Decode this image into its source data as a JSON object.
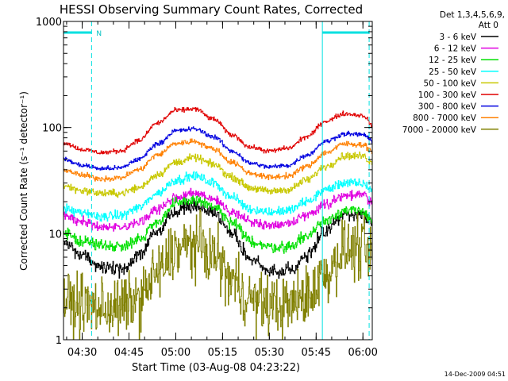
{
  "chart_data": {
    "type": "line",
    "title": "HESSI Observing Summary Count Rates, Corrected",
    "xlabel": "Start Time (03-Aug-08 04:23:22)",
    "ylabel": "Corrected Count Rate (s⁻¹ detector⁻¹)",
    "x_start": "04:23",
    "x_end": "06:02",
    "xlim": [
      24,
      123
    ],
    "x_ticks": [
      {
        "label": "04:30",
        "value": 30
      },
      {
        "label": "04:45",
        "value": 45
      },
      {
        "label": "05:00",
        "value": 60
      },
      {
        "label": "05:15",
        "value": 75
      },
      {
        "label": "05:30",
        "value": 90
      },
      {
        "label": "05:45",
        "value": 105
      },
      {
        "label": "06:00",
        "value": 120
      }
    ],
    "y_scale": "log",
    "ylim": [
      1,
      1000
    ],
    "y_ticks": [
      {
        "label": "1",
        "value": 1
      },
      {
        "label": "10",
        "value": 10
      },
      {
        "label": "100",
        "value": 100
      },
      {
        "label": "1000",
        "value": 1000
      }
    ],
    "legend": {
      "position": "right-outside",
      "header": [
        "Det 1,3,4,5,6,9,",
        "Att 0"
      ]
    },
    "annotations": [
      {
        "label": "N",
        "x": 33
      }
    ],
    "night_intervals": [
      {
        "start": 24,
        "end": 33
      },
      {
        "start": 107,
        "end": 122
      }
    ],
    "cyan_lines": {
      "solid": [
        24,
        107
      ],
      "dashed": [
        33,
        122
      ]
    },
    "x": [
      24,
      30,
      36,
      42,
      48,
      54,
      60,
      66,
      72,
      78,
      84,
      90,
      96,
      102,
      108,
      114,
      120,
      123
    ],
    "series": [
      {
        "name": "3 - 6 keV",
        "color": "#000000",
        "noise": 0.07,
        "values": [
          8.3,
          6.3,
          4.8,
          4.6,
          6.2,
          10.5,
          16.3,
          18.5,
          15.8,
          10.2,
          5.6,
          4.4,
          4.5,
          6.3,
          10.7,
          15.1,
          15.0,
          12.0
        ]
      },
      {
        "name": "6 - 12 keV",
        "color": "#e000e0",
        "noise": 0.05,
        "values": [
          15.0,
          13.0,
          11.5,
          11.2,
          12.5,
          17.0,
          22.0,
          24.0,
          21.0,
          16.0,
          13.0,
          12.0,
          12.5,
          15.0,
          19.0,
          23.0,
          23.0,
          20.0
        ]
      },
      {
        "name": "12 - 25 keV",
        "color": "#00e000",
        "noise": 0.06,
        "values": [
          10.0,
          8.5,
          7.8,
          7.6,
          8.8,
          13.0,
          19.0,
          21.0,
          18.0,
          12.5,
          8.5,
          7.5,
          7.5,
          9.5,
          13.5,
          16.5,
          16.0,
          13.5
        ]
      },
      {
        "name": "25 - 50 keV",
        "color": "#00ffff",
        "noise": 0.05,
        "values": [
          17.0,
          15.5,
          14.5,
          14.8,
          17.5,
          24.0,
          32.0,
          35.0,
          30.0,
          22.0,
          17.0,
          16.0,
          16.5,
          20.0,
          26.0,
          30.0,
          29.5,
          26.0
        ]
      },
      {
        "name": "50 - 100 keV",
        "color": "#c8c800",
        "noise": 0.04,
        "values": [
          28.0,
          25.5,
          24.0,
          24.0,
          27.0,
          36.0,
          47.0,
          52.0,
          45.0,
          34.0,
          27.0,
          25.0,
          26.0,
          32.0,
          43.0,
          54.0,
          54.0,
          46.0
        ]
      },
      {
        "name": "100 - 300 keV",
        "color": "#e00000",
        "noise": 0.025,
        "values": [
          72.0,
          62.0,
          58.0,
          60.0,
          75.0,
          110.0,
          145.0,
          150.0,
          120.0,
          85.0,
          65.0,
          60.0,
          64.0,
          82.0,
          115.0,
          135.0,
          130.0,
          105.0
        ]
      },
      {
        "name": "300 - 800 keV",
        "color": "#0000e0",
        "noise": 0.025,
        "values": [
          50.0,
          44.0,
          41.0,
          41.5,
          50.0,
          70.0,
          93.0,
          97.0,
          82.0,
          60.0,
          46.0,
          42.5,
          44.0,
          55.0,
          74.0,
          87.0,
          86.0,
          74.0
        ]
      },
      {
        "name": "800 - 7000 keV",
        "color": "#ff8000",
        "noise": 0.03,
        "values": [
          40.0,
          35.5,
          33.0,
          33.5,
          40.0,
          55.0,
          71.0,
          74.0,
          63.0,
          47.0,
          37.0,
          34.0,
          35.0,
          43.0,
          58.0,
          70.0,
          69.0,
          60.0
        ]
      },
      {
        "name": "7000 - 20000 keV",
        "color": "#808000",
        "noise": 0.32,
        "values": [
          2.3,
          2.1,
          2.0,
          2.0,
          2.4,
          4.2,
          7.0,
          8.0,
          6.3,
          3.6,
          2.4,
          2.1,
          2.1,
          2.6,
          4.2,
          7.0,
          7.2,
          5.5
        ]
      }
    ]
  },
  "footer": {
    "date": "14-Dec-2009 04:51"
  }
}
